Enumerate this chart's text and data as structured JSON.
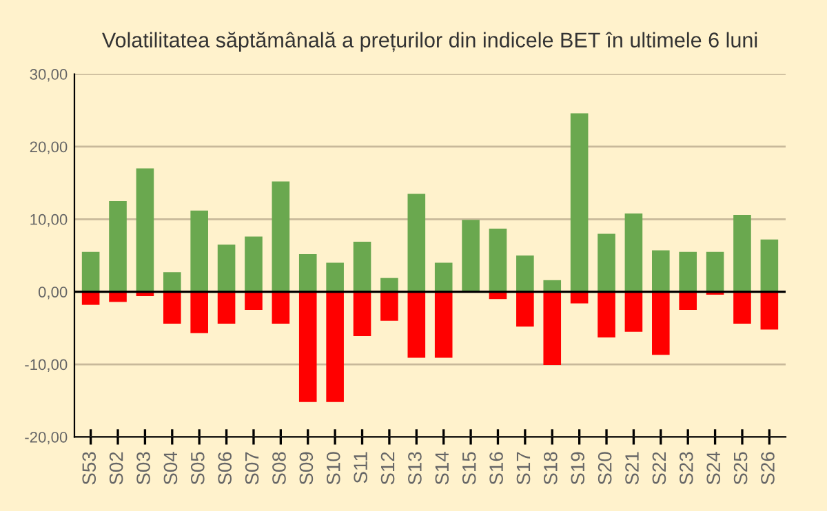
{
  "chart_data": {
    "type": "bar",
    "title": "Volatilitatea săptămânală a prețurilor din indicele BET în ultimele 6 luni",
    "categories": [
      "S53",
      "S02",
      "S03",
      "S04",
      "S05",
      "S06",
      "S07",
      "S08",
      "S09",
      "S10",
      "S11",
      "S12",
      "S13",
      "S14",
      "S15",
      "S16",
      "S17",
      "S18",
      "S19",
      "S20",
      "S21",
      "S22",
      "S23",
      "S24",
      "S25",
      "S26"
    ],
    "series": [
      {
        "color": "#6aa84f",
        "values": [
          5.5,
          12.5,
          17.0,
          2.7,
          11.2,
          6.5,
          7.6,
          15.2,
          5.2,
          4.0,
          6.9,
          1.9,
          13.5,
          4.0,
          9.9,
          8.7,
          5.0,
          1.6,
          24.6,
          8.0,
          10.8,
          5.7,
          5.5,
          5.5,
          10.6,
          7.2
        ]
      },
      {
        "color": "#ff0000",
        "values": [
          -1.8,
          -1.4,
          -0.6,
          -4.4,
          -5.7,
          -4.4,
          -2.5,
          -4.4,
          -15.2,
          -15.2,
          -6.1,
          -4.0,
          -9.1,
          -9.1,
          0,
          -1.0,
          -4.8,
          -10.1,
          -1.6,
          -6.3,
          -5.5,
          -8.7,
          -2.5,
          -0.4,
          -4.4,
          -5.2
        ]
      }
    ],
    "ylim": [
      -20,
      30
    ],
    "yticks": [
      {
        "value": -20,
        "label": "-20,00"
      },
      {
        "value": -10,
        "label": "-10,00"
      },
      {
        "value": 0,
        "label": "0,00"
      },
      {
        "value": 10,
        "label": "10,00"
      },
      {
        "value": 20,
        "label": "20,00"
      },
      {
        "value": 30,
        "label": "30,00"
      }
    ],
    "grid": "y",
    "stacked": true,
    "ref_lines": [
      {
        "axis": "y",
        "value": 0,
        "color": "#000000"
      }
    ],
    "legend": false
  }
}
